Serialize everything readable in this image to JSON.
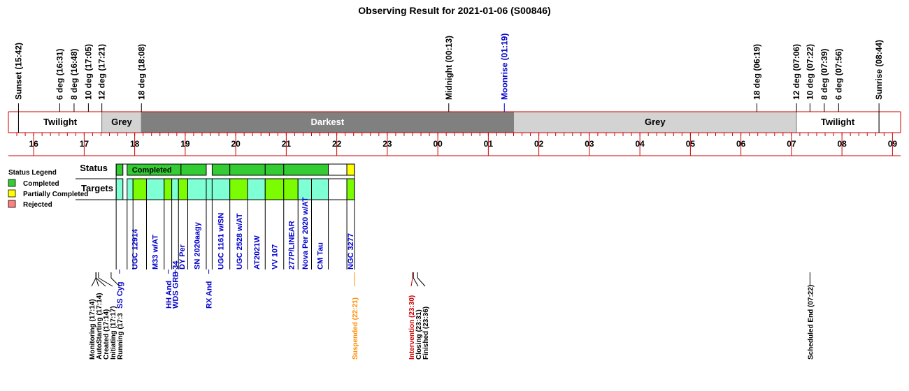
{
  "chart_data": {
    "type": "timeline",
    "title": "Observing Result for 2021-01-06 (S00846)",
    "hour_ticks": [
      "16",
      "17",
      "18",
      "19",
      "20",
      "21",
      "22",
      "23",
      "00",
      "01",
      "02",
      "03",
      "04",
      "05",
      "06",
      "07",
      "08",
      "09"
    ],
    "events_top": [
      {
        "label": "Sunset (15:42)",
        "time": "15:42",
        "color": "#000000"
      },
      {
        "label": "6 deg (16:31)",
        "time": "16:31",
        "color": "#000000"
      },
      {
        "label": "8 deg (16:48)",
        "time": "16:48",
        "color": "#000000"
      },
      {
        "label": "10 deg (17:05)",
        "time": "17:05",
        "color": "#000000"
      },
      {
        "label": "12 deg (17:21)",
        "time": "17:21",
        "color": "#000000"
      },
      {
        "label": "18 deg (18:08)",
        "time": "18:08",
        "color": "#000000"
      },
      {
        "label": "Midnight (00:13)",
        "time": "00:13",
        "color": "#000000"
      },
      {
        "label": "Moonrise (01:19)",
        "time": "01:19",
        "color": "#0000cc"
      },
      {
        "label": "18 deg (06:19)",
        "time": "06:19",
        "color": "#000000"
      },
      {
        "label": "12 deg (07:06)",
        "time": "07:06",
        "color": "#000000"
      },
      {
        "label": "10 deg (07:22)",
        "time": "07:22",
        "color": "#000000"
      },
      {
        "label": "8 deg (07:39)",
        "time": "07:39",
        "color": "#000000"
      },
      {
        "label": "6 deg (07:56)",
        "time": "07:56",
        "color": "#000000"
      },
      {
        "label": "Sunrise (08:44)",
        "time": "08:44",
        "color": "#000000"
      }
    ],
    "sky_segments": [
      {
        "label": "Twilight",
        "start": "15:42",
        "end": "17:21",
        "color": "#ffffff",
        "text_color": "#000000"
      },
      {
        "label": "Grey",
        "start": "17:21",
        "end": "18:08",
        "color": "#d3d3d3",
        "text_color": "#000000"
      },
      {
        "label": "Darkest",
        "start": "18:08",
        "end": "01:30",
        "color": "#808080",
        "text_color": "#ffffff"
      },
      {
        "label": "Grey",
        "start": "01:30",
        "end": "07:06",
        "color": "#d3d3d3",
        "text_color": "#000000"
      },
      {
        "label": "Twilight",
        "start": "07:06",
        "end": "08:44",
        "color": "#ffffff",
        "text_color": "#000000"
      }
    ],
    "legend": {
      "title": "Status Legend",
      "items": [
        {
          "label": "Completed",
          "color": "#33cc33"
        },
        {
          "label": "Partially Completed",
          "color": "#ffff00"
        },
        {
          "label": "Rejected",
          "color": "#ff8080"
        }
      ]
    },
    "row_labels": {
      "status": "Status",
      "targets": "Targets"
    },
    "status_blocks": [
      {
        "start": "17:38",
        "end": "17:46",
        "color": "#33cc33",
        "label": ""
      },
      {
        "start": "17:51",
        "end": "18:55",
        "color": "#33cc33",
        "label": "Completed"
      },
      {
        "start": "18:55",
        "end": "19:25",
        "color": "#33cc33",
        "label": ""
      },
      {
        "start": "19:32",
        "end": "19:53",
        "color": "#33cc33",
        "label": ""
      },
      {
        "start": "19:53",
        "end": "20:35",
        "color": "#33cc33",
        "label": ""
      },
      {
        "start": "20:35",
        "end": "20:57",
        "color": "#33cc33",
        "label": ""
      },
      {
        "start": "20:57",
        "end": "21:50",
        "color": "#33cc33",
        "label": ""
      },
      {
        "start": "21:50",
        "end": "22:12",
        "color": "#ffffff",
        "label": ""
      },
      {
        "start": "22:12",
        "end": "22:21",
        "color": "#ffff00",
        "label": ""
      }
    ],
    "target_blocks": [
      {
        "start": "17:38",
        "end": "17:46",
        "color": "#7fffd4"
      },
      {
        "start": "17:51",
        "end": "17:58",
        "color": "#7fffd4"
      },
      {
        "start": "17:58",
        "end": "18:14",
        "color": "#7cfc00"
      },
      {
        "start": "18:14",
        "end": "18:35",
        "color": "#7fffd4"
      },
      {
        "start": "18:35",
        "end": "18:44",
        "color": "#7cfc00"
      },
      {
        "start": "18:44",
        "end": "18:52",
        "color": "#7fffd4"
      },
      {
        "start": "18:52",
        "end": "19:03",
        "color": "#7cfc00"
      },
      {
        "start": "19:03",
        "end": "19:25",
        "color": "#7fffd4"
      },
      {
        "start": "19:25",
        "end": "19:32",
        "color": "#7fffd4"
      },
      {
        "start": "19:32",
        "end": "19:53",
        "color": "#7fffd4"
      },
      {
        "start": "19:53",
        "end": "20:14",
        "color": "#7cfc00"
      },
      {
        "start": "20:14",
        "end": "20:35",
        "color": "#7fffd4"
      },
      {
        "start": "20:35",
        "end": "20:57",
        "color": "#7cfc00"
      },
      {
        "start": "20:57",
        "end": "21:14",
        "color": "#7cfc00"
      },
      {
        "start": "21:14",
        "end": "21:30",
        "color": "#7fffd4"
      },
      {
        "start": "21:30",
        "end": "21:50",
        "color": "#7fffd4"
      },
      {
        "start": "21:50",
        "end": "22:12",
        "color": "#ffffff"
      },
      {
        "start": "22:12",
        "end": "22:21",
        "color": "#7cfc00"
      }
    ],
    "target_labels": [
      {
        "label": "UGC 12914",
        "time": "18:00"
      },
      {
        "label": "M33  w/AT",
        "time": "18:24"
      },
      {
        "label": "DY Per",
        "time": "18:56"
      },
      {
        "label": "SN 2020aagy",
        "time": "19:14"
      },
      {
        "label": "UGC 1161 w/SN",
        "time": "19:42"
      },
      {
        "label": "UGC 2528  w/AT",
        "time": "20:04"
      },
      {
        "label": "AT2021W",
        "time": "20:25"
      },
      {
        "label": "VV 107",
        "time": "20:46"
      },
      {
        "label": "277P/LINEAR",
        "time": "21:06"
      },
      {
        "label": "Nova Per 2020 w/AT",
        "time": "21:22"
      },
      {
        "label": "CM Tau",
        "time": "21:40"
      },
      {
        "label": "NGC 3277",
        "time": "22:16"
      }
    ],
    "target_labels_low": [
      {
        "label": "SS Cyg",
        "time": "17:42"
      },
      {
        "label": "HH And",
        "time": "18:40"
      },
      {
        "label": "WDS GRB 34",
        "time": "18:48"
      },
      {
        "label": "RX And",
        "time": "19:28"
      }
    ],
    "events_bottom": [
      {
        "label": "Monitoring (17:14)",
        "time": "17:14",
        "color": "#000000"
      },
      {
        "label": "AutoStarting (17:14)",
        "time": "17:14",
        "color": "#000000"
      },
      {
        "label": "Created (17:14)",
        "time": "17:14",
        "color": "#000000"
      },
      {
        "label": "Initiating (17:17)",
        "time": "17:17",
        "color": "#000000"
      },
      {
        "label": "Running (17:3",
        "time": "17:32",
        "color": "#000000"
      },
      {
        "label": "Suspended (22:21)",
        "time": "22:21",
        "color": "#ff8c00"
      },
      {
        "label": "Intervention (23:30)",
        "time": "23:30",
        "color": "#cc0000"
      },
      {
        "label": "Closing (23:31)",
        "time": "23:31",
        "color": "#000000"
      },
      {
        "label": "Finished (23:36)",
        "time": "23:36",
        "color": "#000000"
      },
      {
        "label": "Scheduled End (07:22)",
        "time": "07:22",
        "color": "#000000"
      }
    ],
    "colors": {
      "axis": "#cc0000",
      "target_text": "#0000cc"
    }
  }
}
